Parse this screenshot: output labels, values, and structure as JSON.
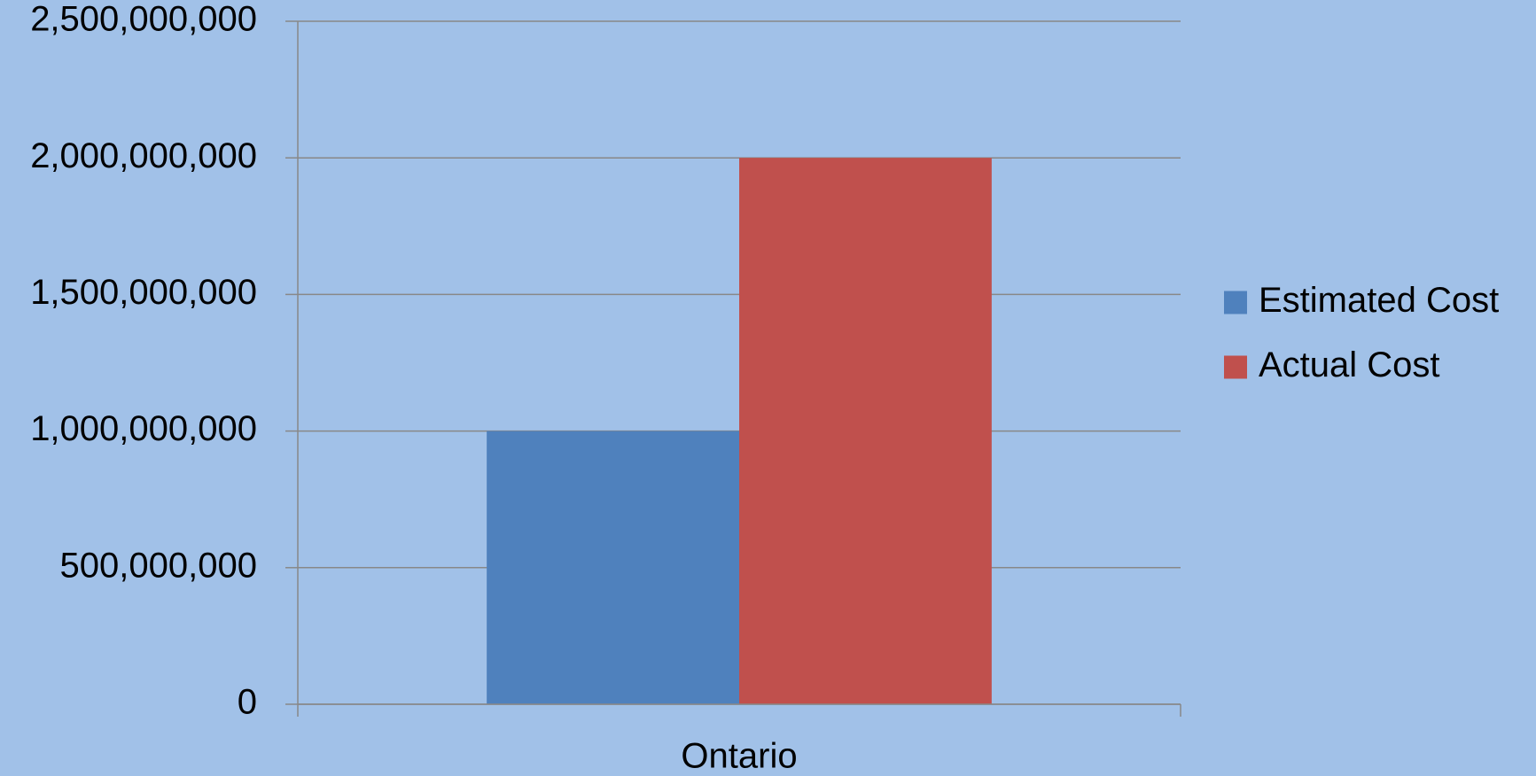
{
  "chart_data": {
    "type": "bar",
    "categories": [
      "Ontario"
    ],
    "series": [
      {
        "name": "Estimated Cost",
        "color": "#4f81bd",
        "values": [
          1000000000
        ]
      },
      {
        "name": "Actual Cost",
        "color": "#c0504d",
        "values": [
          2000000000
        ]
      }
    ],
    "ylim": [
      0,
      2500000000
    ],
    "yticks": [
      0,
      {
        "value": 500000000,
        "label": "500,000,000"
      },
      {
        "value": 1000000000,
        "label": "1,000,000,000"
      },
      {
        "value": 1500000000,
        "label": "1,500,000,000"
      },
      {
        "value": 2000000000,
        "label": "2,000,000,000"
      },
      {
        "value": 2500000000,
        "label": "2,500,000,000"
      }
    ],
    "grid": true,
    "legend": "right"
  }
}
